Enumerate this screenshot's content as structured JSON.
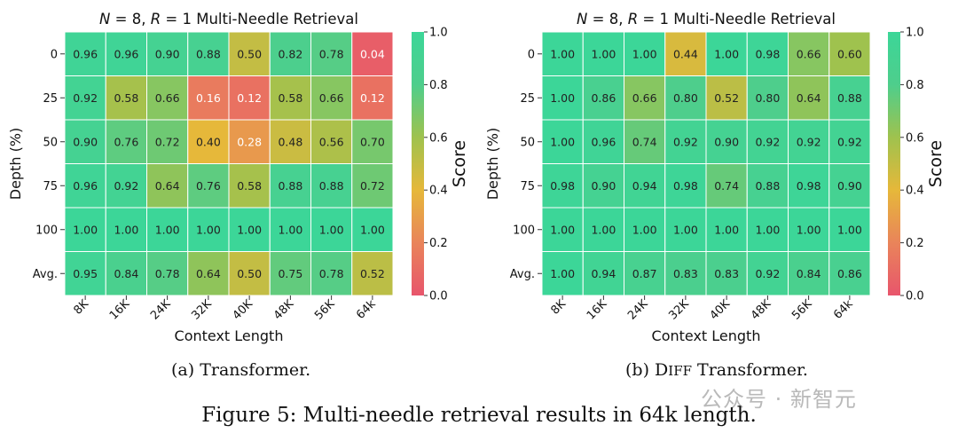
{
  "figure_caption": "Figure 5: Multi-needle retrieval results in 64k length.",
  "watermark": "公众号 · 新智元",
  "colorbar": {
    "label": "Score",
    "ticks": [
      "0.0",
      "0.2",
      "0.4",
      "0.6",
      "0.8",
      "1.0"
    ],
    "colors": [
      "#e8556c",
      "#e9845a",
      "#e6b83a",
      "#9fc24e",
      "#4ece8c",
      "#3cd698"
    ]
  },
  "chart_data": [
    {
      "type": "heatmap",
      "title_parts": [
        "N",
        " = 8, ",
        "R",
        " = 1 Multi-Needle Retrieval"
      ],
      "subcaption": "(a) Transformer.",
      "xlabel": "Context Length",
      "ylabel": "Depth (%)",
      "x_categories": [
        "8K",
        "16K",
        "24K",
        "32K",
        "40K",
        "48K",
        "56K",
        "64k"
      ],
      "y_categories": [
        "0",
        "25",
        "50",
        "75",
        "100",
        "Avg."
      ],
      "vmin": 0.0,
      "vmax": 1.0,
      "values": [
        [
          0.96,
          0.96,
          0.9,
          0.88,
          0.5,
          0.82,
          0.78,
          0.04
        ],
        [
          0.92,
          0.58,
          0.66,
          0.16,
          0.12,
          0.58,
          0.66,
          0.12
        ],
        [
          0.9,
          0.76,
          0.72,
          0.4,
          0.28,
          0.48,
          0.56,
          0.7
        ],
        [
          0.96,
          0.92,
          0.64,
          0.76,
          0.58,
          0.88,
          0.88,
          0.72
        ],
        [
          1.0,
          1.0,
          1.0,
          1.0,
          1.0,
          1.0,
          1.0,
          1.0
        ],
        [
          0.95,
          0.84,
          0.78,
          0.64,
          0.5,
          0.75,
          0.78,
          0.52
        ]
      ]
    },
    {
      "type": "heatmap",
      "title_parts": [
        "N",
        " = 8, ",
        "R",
        " = 1 Multi-Needle Retrieval"
      ],
      "subcaption_prefix": "(b) D",
      "subcaption_smallcaps": "IFF",
      "subcaption_suffix": " Transformer.",
      "xlabel": "Context Length",
      "ylabel": "Depth (%)",
      "x_categories": [
        "8K",
        "16K",
        "24K",
        "32K",
        "40K",
        "48K",
        "56K",
        "64k"
      ],
      "y_categories": [
        "0",
        "25",
        "50",
        "75",
        "100",
        "Avg."
      ],
      "vmin": 0.0,
      "vmax": 1.0,
      "values": [
        [
          1.0,
          1.0,
          1.0,
          0.44,
          1.0,
          0.98,
          0.66,
          0.6
        ],
        [
          1.0,
          0.86,
          0.66,
          0.8,
          0.52,
          0.8,
          0.64,
          0.88
        ],
        [
          1.0,
          0.96,
          0.74,
          0.92,
          0.9,
          0.92,
          0.92,
          0.92
        ],
        [
          0.98,
          0.9,
          0.94,
          0.98,
          0.74,
          0.88,
          0.98,
          0.9
        ],
        [
          1.0,
          1.0,
          1.0,
          1.0,
          1.0,
          1.0,
          1.0,
          1.0
        ],
        [
          1.0,
          0.94,
          0.87,
          0.83,
          0.83,
          0.92,
          0.84,
          0.86
        ]
      ]
    }
  ]
}
